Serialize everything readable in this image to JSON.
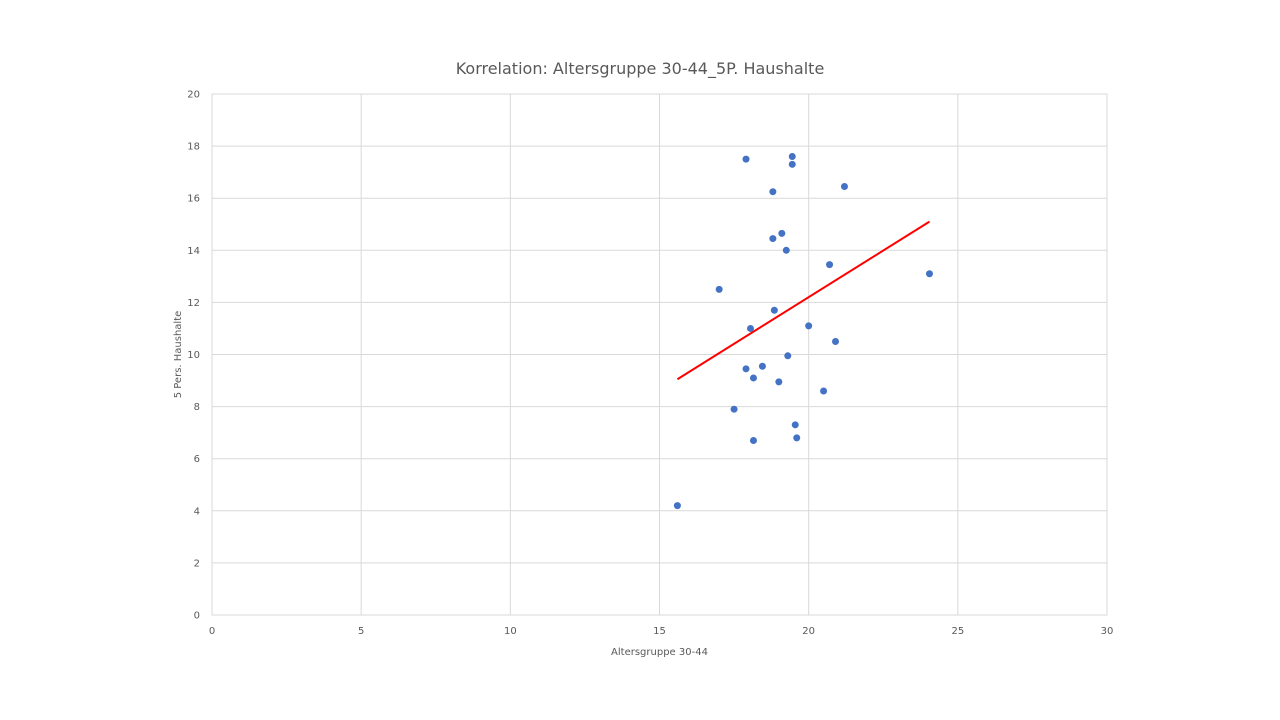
{
  "chart_data": {
    "type": "scatter",
    "title": "Korrelation: Altersgruppe 30-44_5P. Haushalte",
    "xlabel": "Altersgruppe 30-44",
    "ylabel": "5 Pers. Haushalte",
    "xlim": [
      0,
      30
    ],
    "ylim": [
      0,
      20
    ],
    "x_ticks": [
      0,
      5,
      10,
      15,
      20,
      25,
      30
    ],
    "y_ticks": [
      0,
      2,
      4,
      6,
      8,
      10,
      12,
      14,
      16,
      18,
      20
    ],
    "grid": true,
    "legend": "none",
    "series": [
      {
        "name": "5 Pers. Haushalte",
        "color": "#4472c4",
        "points": [
          {
            "x": 15.6,
            "y": 4.2
          },
          {
            "x": 17.0,
            "y": 12.5
          },
          {
            "x": 17.5,
            "y": 7.9
          },
          {
            "x": 17.9,
            "y": 17.5
          },
          {
            "x": 17.9,
            "y": 9.45
          },
          {
            "x": 18.05,
            "y": 11.0
          },
          {
            "x": 18.15,
            "y": 9.1
          },
          {
            "x": 18.15,
            "y": 6.7
          },
          {
            "x": 18.45,
            "y": 9.55
          },
          {
            "x": 18.8,
            "y": 16.25
          },
          {
            "x": 18.8,
            "y": 14.45
          },
          {
            "x": 18.85,
            "y": 11.7
          },
          {
            "x": 19.0,
            "y": 8.95
          },
          {
            "x": 19.1,
            "y": 14.65
          },
          {
            "x": 19.25,
            "y": 14.0
          },
          {
            "x": 19.3,
            "y": 9.95
          },
          {
            "x": 19.45,
            "y": 17.6
          },
          {
            "x": 19.45,
            "y": 17.3
          },
          {
            "x": 19.55,
            "y": 7.3
          },
          {
            "x": 19.6,
            "y": 6.8
          },
          {
            "x": 20.0,
            "y": 11.1
          },
          {
            "x": 20.5,
            "y": 8.6
          },
          {
            "x": 20.7,
            "y": 13.45
          },
          {
            "x": 20.9,
            "y": 10.5
          },
          {
            "x": 21.2,
            "y": 16.45
          },
          {
            "x": 24.05,
            "y": 13.1
          }
        ]
      }
    ],
    "trendline": {
      "type": "linear",
      "color": "#ff0000",
      "x": [
        15.6,
        24.05
      ],
      "y": [
        9.05,
        15.1
      ]
    }
  }
}
